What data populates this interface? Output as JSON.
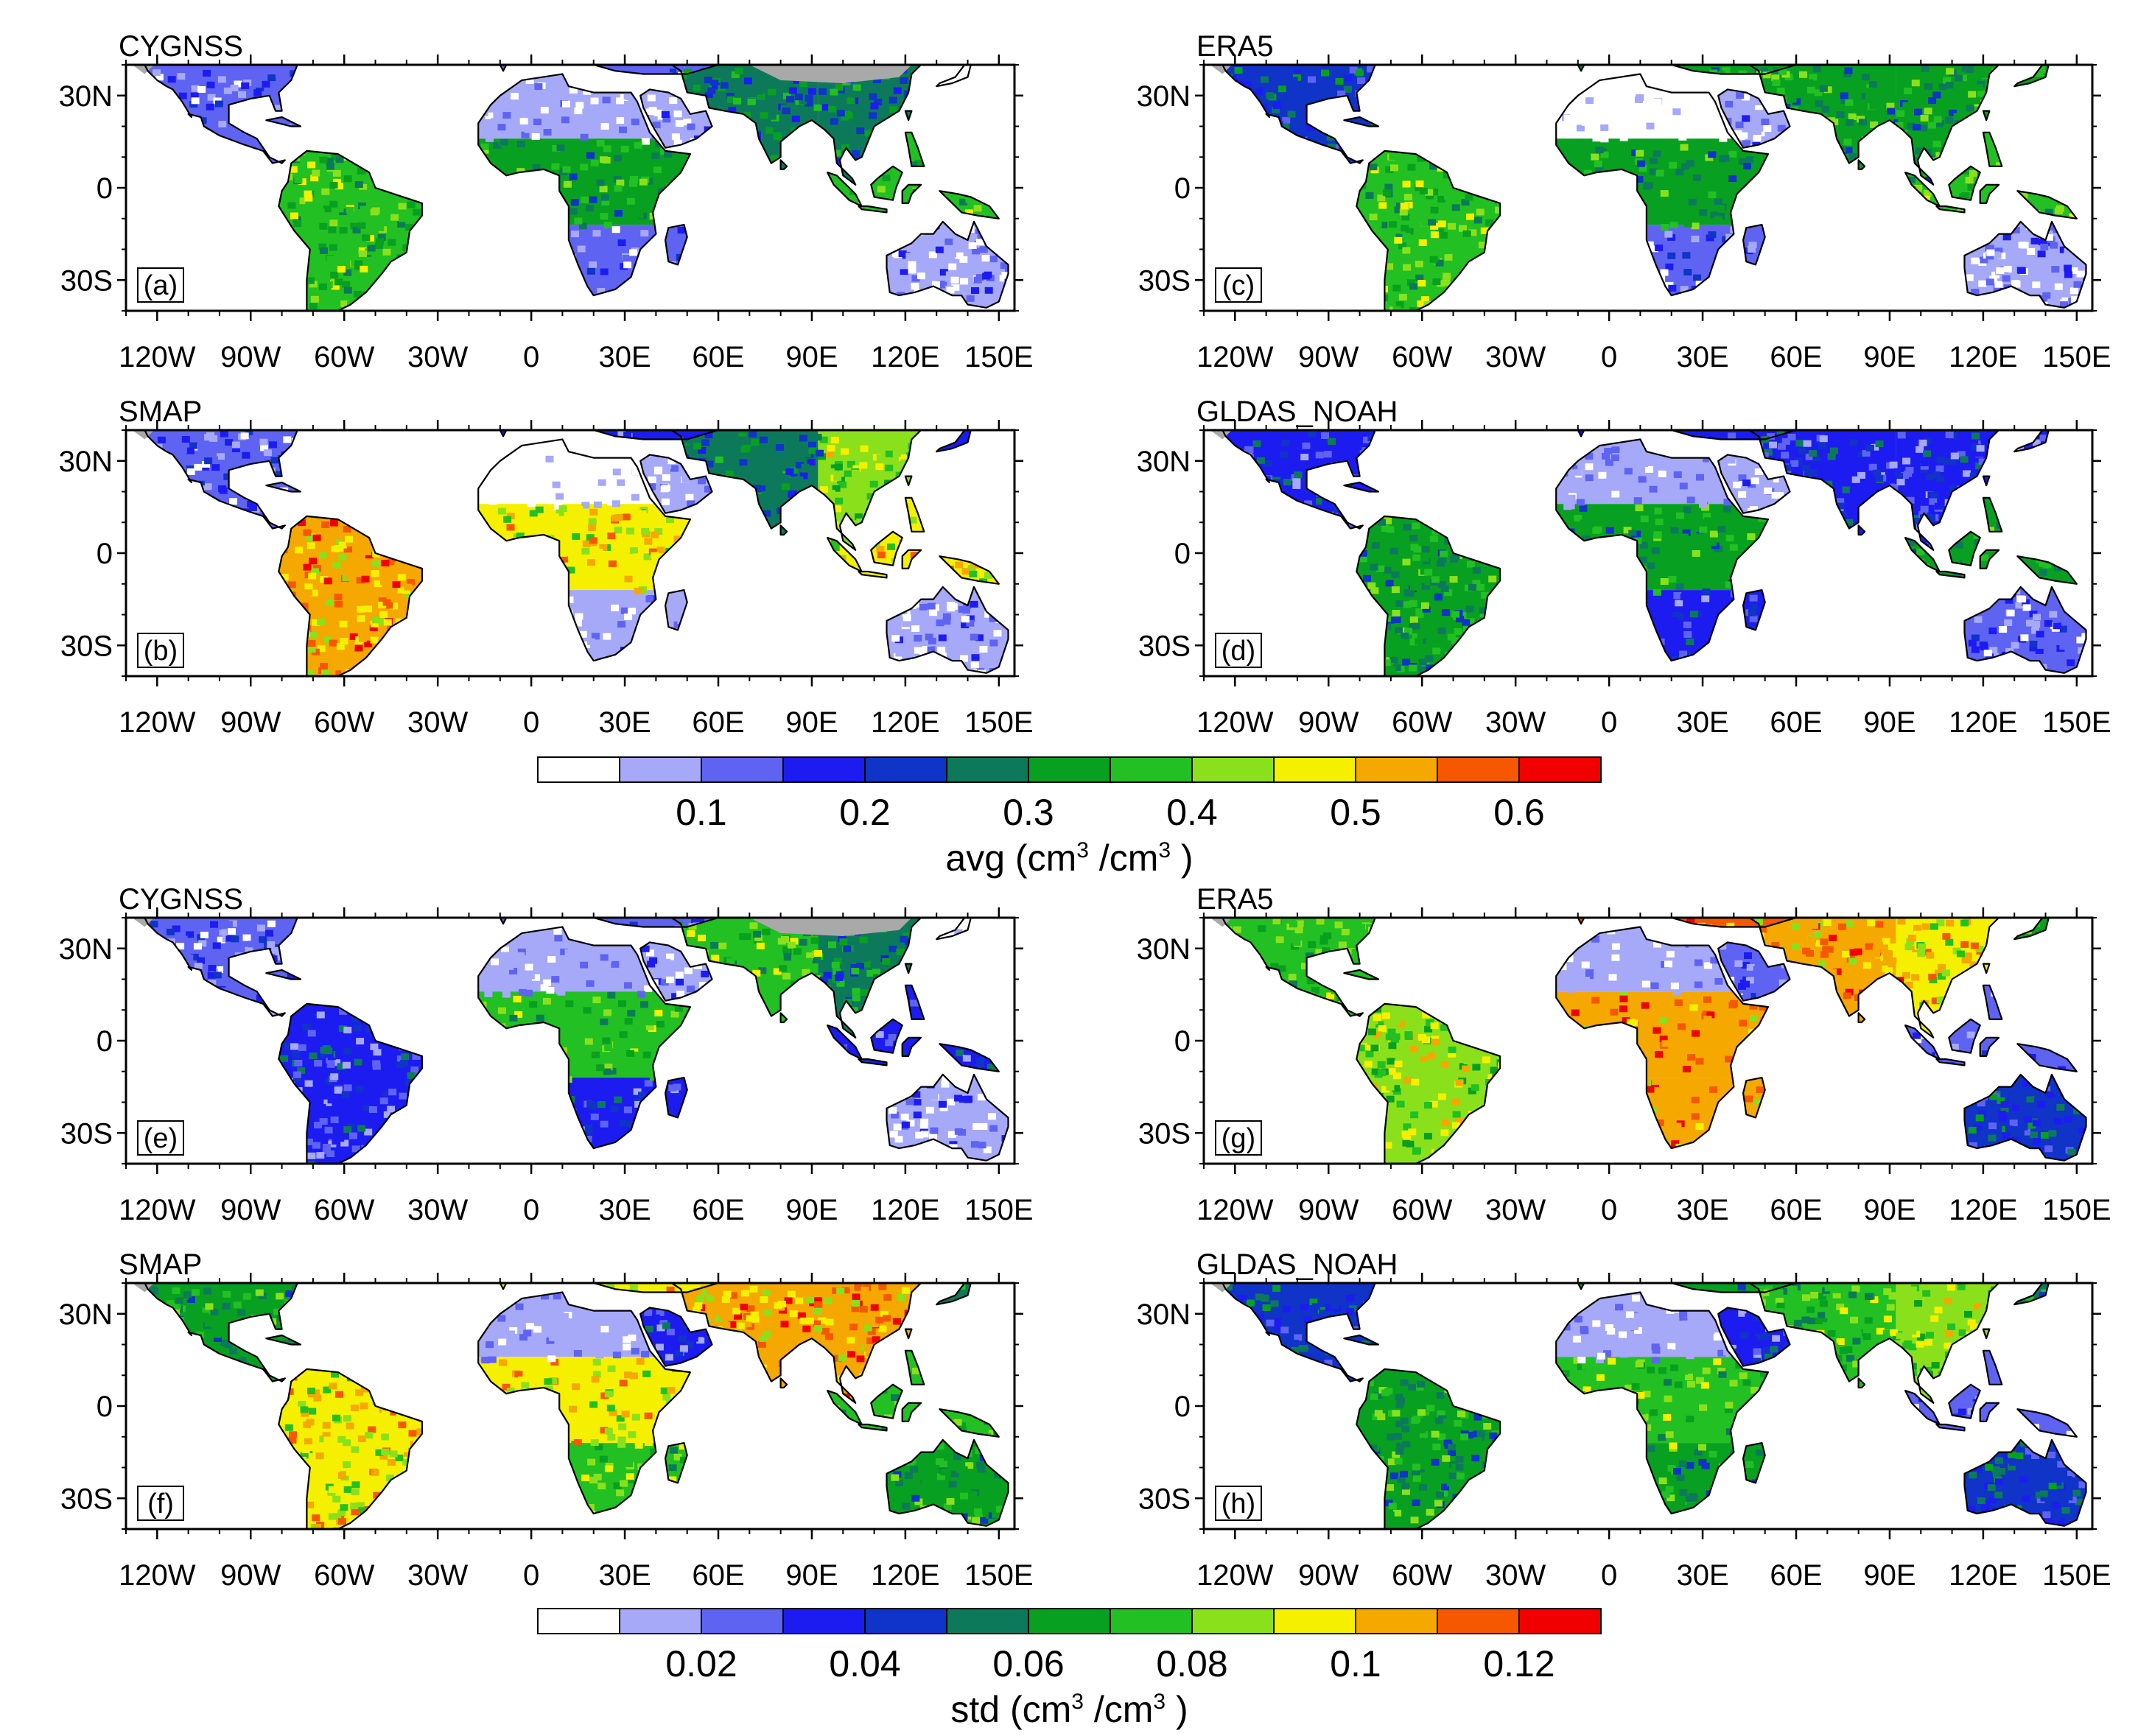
{
  "figure": {
    "lat_labels": [
      "30N",
      "0",
      "30S"
    ],
    "lon_labels": [
      "120W",
      "90W",
      "60W",
      "30W",
      "0",
      "30E",
      "60E",
      "90E",
      "120E",
      "150E"
    ],
    "panels": [
      {
        "id": "a",
        "title": "CYGNSS",
        "letter": "(a)",
        "field": "avg"
      },
      {
        "id": "b",
        "title": "SMAP",
        "letter": "(b)",
        "field": "avg"
      },
      {
        "id": "c",
        "title": "ERA5",
        "letter": "(c)",
        "field": "avg"
      },
      {
        "id": "d",
        "title": "GLDAS_NOAH",
        "letter": "(d)",
        "field": "avg"
      },
      {
        "id": "e",
        "title": "CYGNSS",
        "letter": "(e)",
        "field": "std"
      },
      {
        "id": "f",
        "title": "SMAP",
        "letter": "(f)",
        "field": "std"
      },
      {
        "id": "g",
        "title": "ERA5",
        "letter": "(g)",
        "field": "std"
      },
      {
        "id": "h",
        "title": "GLDAS_NOAH",
        "letter": "(h)",
        "field": "std"
      }
    ],
    "colorbars": {
      "avg": {
        "title_prefix": "avg (cm",
        "superscript": "3",
        "title_mid": " /cm",
        "title_suffix": " )",
        "labels": [
          "0.1",
          "0.2",
          "0.3",
          "0.4",
          "0.5",
          "0.6"
        ],
        "bounds": [
          0.05,
          0.1,
          0.15,
          0.2,
          0.25,
          0.3,
          0.35,
          0.4,
          0.45,
          0.5,
          0.55,
          0.6
        ]
      },
      "std": {
        "title_prefix": "std (cm",
        "superscript": "3",
        "title_mid": " /cm",
        "title_suffix": " )",
        "labels": [
          "0.02",
          "0.04",
          "0.06",
          "0.08",
          "0.1",
          "0.12"
        ],
        "bounds": [
          0.01,
          0.02,
          0.03,
          0.04,
          0.05,
          0.06,
          0.07,
          0.08,
          0.09,
          0.1,
          0.11,
          0.12
        ]
      }
    },
    "palette": [
      "#ffffff",
      "#a6a9f7",
      "#5f63f2",
      "#1c1cf0",
      "#1033c8",
      "#0c7a5a",
      "#08a020",
      "#22c022",
      "#8be01c",
      "#f5f000",
      "#f5a800",
      "#f55800",
      "#f00000"
    ],
    "missing_color": "#a9a9a9",
    "land_samples": {
      "a": {
        "na": 2,
        "sa": 7,
        "sah": 1,
        "cafr": 6,
        "safr": 2,
        "arab": 1,
        "eur": 2,
        "ind": 5,
        "chn": 5,
        "sea": 7,
        "aus": 1,
        "ne_asia": 0
      },
      "b": {
        "na": 2,
        "sa": 10,
        "sah": 0,
        "cafr": 9,
        "safr": 1,
        "arab": 1,
        "eur": 3,
        "ind": 5,
        "chn": 8,
        "sea": 9,
        "aus": 1,
        "ne_asia": 3
      },
      "c": {
        "na": 4,
        "sa": 7,
        "sah": 0,
        "cafr": 6,
        "safr": 2,
        "arab": 1,
        "eur": 6,
        "ind": 6,
        "chn": 6,
        "sea": 7,
        "aus": 1,
        "ne_asia": 6
      },
      "d": {
        "na": 3,
        "sa": 6,
        "sah": 1,
        "cafr": 6,
        "safr": 3,
        "arab": 1,
        "eur": 3,
        "ind": 3,
        "chn": 3,
        "sea": 6,
        "aus": 2,
        "ne_asia": 3
      },
      "e": {
        "na": 2,
        "sa": 3,
        "sah": 1,
        "cafr": 7,
        "safr": 3,
        "arab": 1,
        "eur": 2,
        "ind": 7,
        "chn": 5,
        "sea": 3,
        "aus": 1,
        "ne_asia": 0
      },
      "f": {
        "na": 6,
        "sa": 9,
        "sah": 1,
        "cafr": 9,
        "safr": 7,
        "arab": 3,
        "eur": 9,
        "ind": 10,
        "chn": 10,
        "sea": 7,
        "aus": 6,
        "ne_asia": 5
      },
      "g": {
        "na": 7,
        "sa": 8,
        "sah": 1,
        "cafr": 10,
        "safr": 10,
        "arab": 2,
        "eur": 11,
        "ind": 10,
        "chn": 9,
        "sea": 2,
        "aus": 4,
        "ne_asia": 6
      },
      "h": {
        "na": 4,
        "sa": 6,
        "sah": 1,
        "cafr": 7,
        "safr": 6,
        "arab": 3,
        "eur": 6,
        "ind": 7,
        "chn": 8,
        "sea": 2,
        "aus": 4,
        "ne_asia": 5
      }
    }
  }
}
